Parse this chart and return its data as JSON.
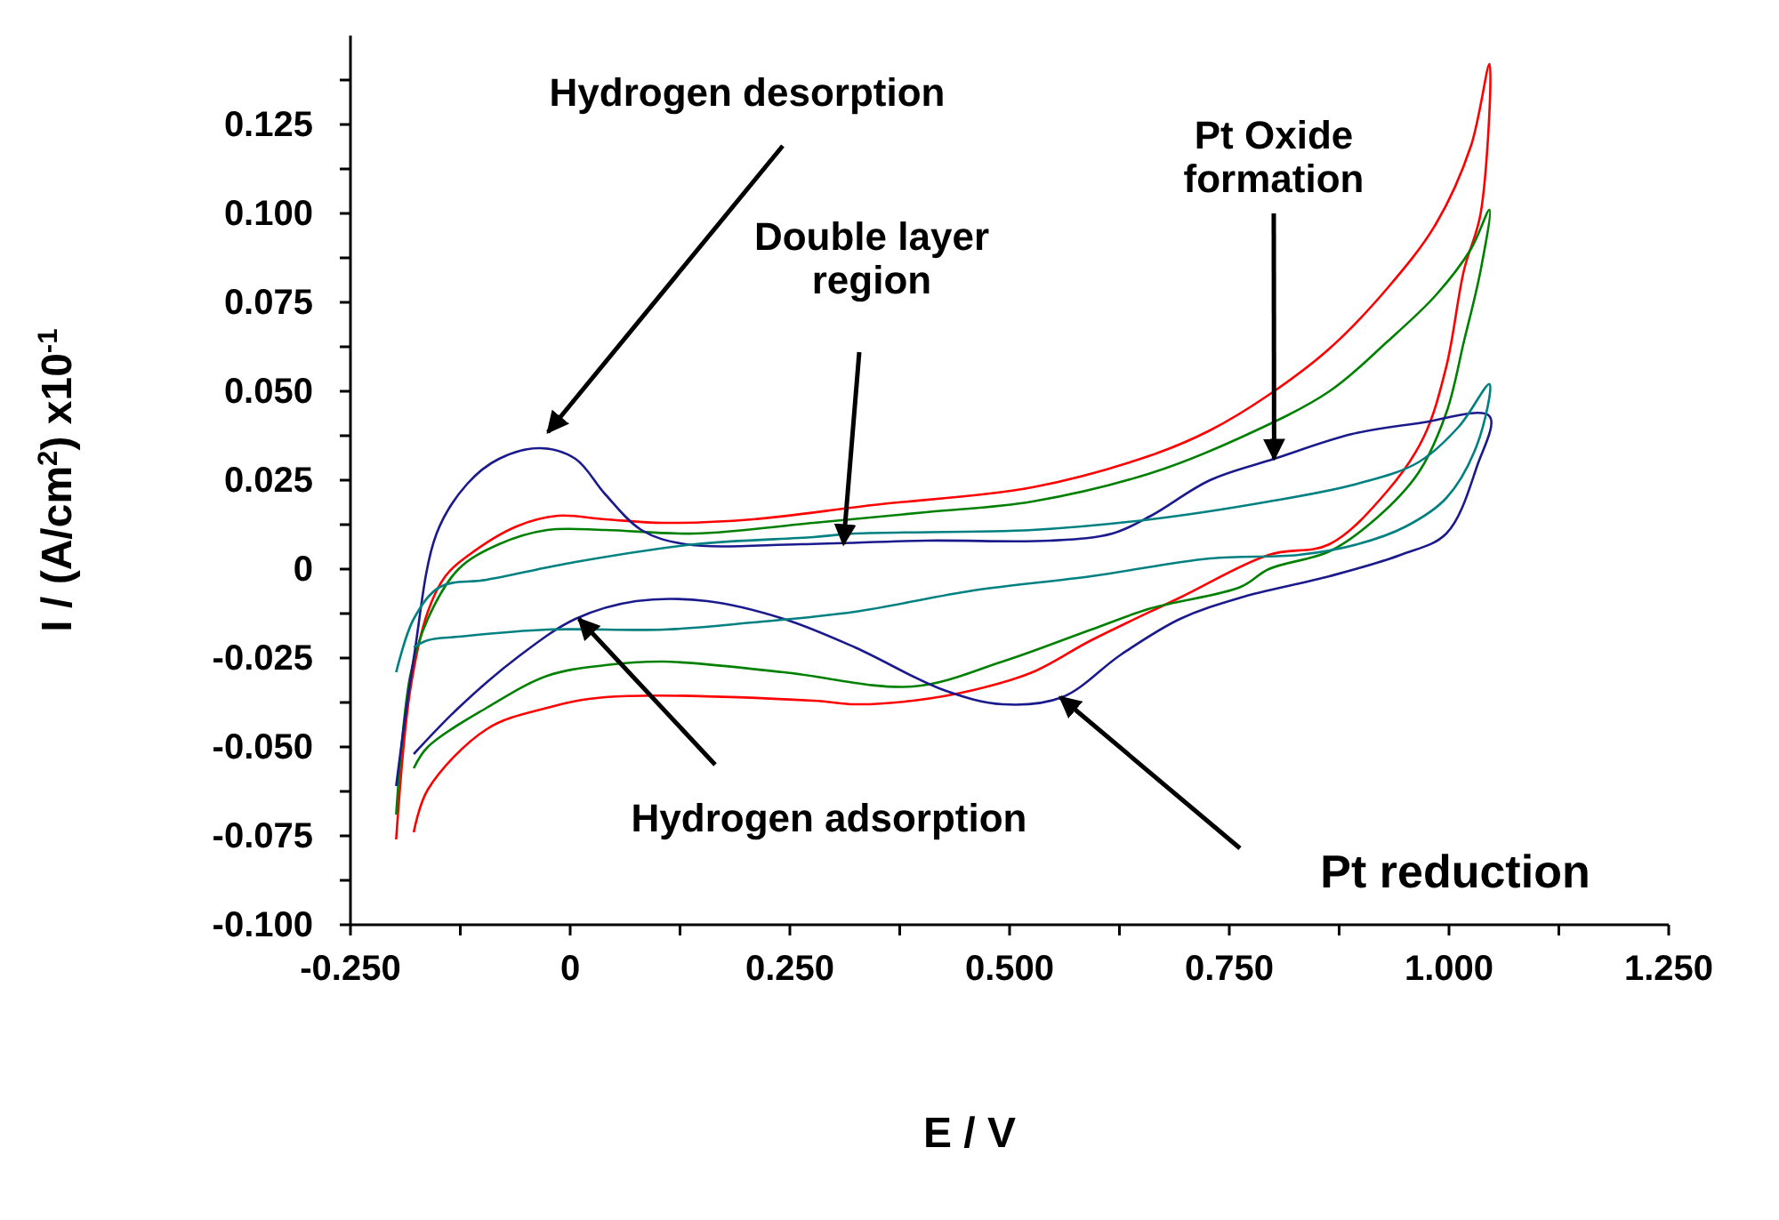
{
  "chart_data": {
    "type": "line",
    "xlabel": "E / V",
    "ylabel": "I / (A/cm$^{2}$) x10$^{-1}$",
    "xlim": [
      -0.25,
      1.25
    ],
    "xticks": [
      {
        "value": -0.25,
        "label": "-0.250"
      },
      {
        "value": -0.125,
        "label": null
      },
      0,
      {
        "value": 0.125,
        "label": null
      },
      {
        "value": 0.25,
        "label": "0.250"
      },
      {
        "value": 0.375,
        "label": null
      },
      {
        "value": 0.5,
        "label": "0.500"
      },
      {
        "value": 0.625,
        "label": null
      },
      {
        "value": 0.75,
        "label": "0.750"
      },
      {
        "value": 0.875,
        "label": null
      },
      {
        "value": 1,
        "label": "1.000"
      },
      {
        "value": 1.125,
        "label": null
      },
      {
        "value": 1.25,
        "label": "1.250"
      }
    ],
    "ylim": [
      -0.1,
      0.15
    ],
    "yticks": [
      {
        "value": -0.1,
        "label": "-0.100"
      },
      {
        "value": -0.0875,
        "label": null
      },
      -0.075,
      {
        "value": -0.0625,
        "label": null
      },
      {
        "value": -0.05,
        "label": "-0.050"
      },
      {
        "value": -0.0375,
        "label": null
      },
      -0.025,
      {
        "value": -0.0125,
        "label": null
      },
      0,
      {
        "value": 0.0125,
        "label": null
      },
      0.025,
      {
        "value": 0.0375,
        "label": null
      },
      {
        "value": 0.05,
        "label": "0.050"
      },
      {
        "value": 0.0625,
        "label": null
      },
      0.075,
      {
        "value": 0.0875,
        "label": null
      },
      {
        "value": 0.1,
        "label": "0.100"
      },
      {
        "value": 0.1125,
        "label": null
      },
      0.125,
      {
        "value": 0.1375,
        "label": null
      }
    ],
    "grid": false,
    "series": [
      {
        "color": "#ff0000",
        "x": [
          -0.198,
          -0.182,
          -0.162,
          -0.142,
          -0.115,
          -0.061,
          -0.014,
          0.04,
          0.107,
          0.208,
          0.344,
          0.526,
          0.661,
          0.728,
          0.795,
          0.864,
          0.93,
          0.985,
          1.025,
          1.046,
          1.036,
          1.017,
          0.997,
          0.971,
          0.93,
          0.864,
          0.795,
          0.694,
          0.593,
          0.526,
          0.459,
          0.39,
          0.324,
          0.277,
          0.04,
          -0.026,
          -0.095,
          -0.162,
          -0.178
        ],
        "values": [
          -0.076,
          -0.034,
          -0.012,
          -0.002,
          0.004,
          0.012,
          0.015,
          0.014,
          0.013,
          0.014,
          0.018,
          0.023,
          0.032,
          0.039,
          0.049,
          0.062,
          0.079,
          0.097,
          0.119,
          0.142,
          0.1,
          0.084,
          0.057,
          0.037,
          0.022,
          0.007,
          0.004,
          -0.008,
          -0.02,
          -0.029,
          -0.034,
          -0.037,
          -0.038,
          -0.037,
          -0.036,
          -0.039,
          -0.045,
          -0.062,
          -0.074
        ]
      },
      {
        "color": "#008000",
        "x": [
          -0.198,
          -0.182,
          -0.162,
          -0.127,
          -0.081,
          -0.026,
          0.04,
          0.142,
          0.277,
          0.405,
          0.526,
          0.661,
          0.763,
          0.864,
          0.93,
          0.985,
          1.025,
          1.046,
          1.036,
          1.017,
          0.997,
          0.965,
          0.916,
          0.864,
          0.795,
          0.763,
          0.661,
          0.593,
          0.492,
          0.39,
          0.243,
          0.107,
          0.04,
          -0.026,
          -0.095,
          -0.162,
          -0.178
        ],
        "values": [
          -0.069,
          -0.03,
          -0.014,
          0,
          0.007,
          0.011,
          0.011,
          0.01,
          0.013,
          0.016,
          0.019,
          0.027,
          0.037,
          0.05,
          0.064,
          0.077,
          0.09,
          0.101,
          0.084,
          0.064,
          0.044,
          0.027,
          0.014,
          0.005,
          0,
          -0.005,
          -0.011,
          -0.017,
          -0.026,
          -0.033,
          -0.029,
          -0.026,
          -0.027,
          -0.03,
          -0.039,
          -0.05,
          -0.056
        ]
      },
      {
        "color": "#1a1a8c",
        "x": [
          -0.198,
          -0.178,
          -0.152,
          -0.117,
          -0.081,
          -0.034,
          0.006,
          0.04,
          0.081,
          0.131,
          0.263,
          0.405,
          0.546,
          0.617,
          0.661,
          0.728,
          0.801,
          0.89,
          0.965,
          1.046,
          1.032,
          0.997,
          0.945,
          0.864,
          0.763,
          0.694,
          0.627,
          0.56,
          0.492,
          0.425,
          0.324,
          0.243,
          0.156,
          0.075,
          0.006,
          -0.061,
          -0.127,
          -0.178
        ],
        "values": [
          -0.061,
          -0.025,
          0.01,
          0.024,
          0.031,
          0.034,
          0.031,
          0.021,
          0.011,
          0.007,
          0.007,
          0.008,
          0.008,
          0.01,
          0.015,
          0.025,
          0.031,
          0.038,
          0.041,
          0.043,
          0.029,
          0.01,
          0.004,
          -0.002,
          -0.008,
          -0.014,
          -0.024,
          -0.036,
          -0.038,
          -0.034,
          -0.022,
          -0.014,
          -0.009,
          -0.009,
          -0.014,
          -0.025,
          -0.039,
          -0.052
        ]
      },
      {
        "color": "#008080",
        "x": [
          -0.198,
          -0.178,
          -0.148,
          -0.095,
          0.006,
          0.142,
          0.277,
          0.324,
          0.526,
          0.661,
          0.795,
          0.896,
          0.965,
          1.011,
          1.046,
          1.032,
          0.997,
          0.951,
          0.896,
          0.829,
          0.728,
          0.593,
          0.459,
          0.324,
          0.208,
          0.107,
          -0.026,
          -0.127,
          -0.162,
          -0.178
        ],
        "values": [
          -0.029,
          -0.014,
          -0.005,
          -0.003,
          0.002,
          0.007,
          0.009,
          0.01,
          0.011,
          0.014,
          0.019,
          0.024,
          0.03,
          0.04,
          0.052,
          0.035,
          0.02,
          0.012,
          0.007,
          0.004,
          0.003,
          -0.002,
          -0.006,
          -0.012,
          -0.015,
          -0.017,
          -0.017,
          -0.019,
          -0.02,
          -0.022
        ]
      }
    ],
    "annotations": [
      "Hydrogen desorption",
      {
        "text": "Double layer region",
        "x": 0.311,
        "y": 0.007
      },
      {
        "text": "Pt Oxide formation",
        "x": 0.801,
        "y": 0.031
      },
      {
        "text": "Hydrogen adsorption",
        "x": 0.01,
        "y": -0.014
      },
      "Pt reduction"
    ]
  }
}
